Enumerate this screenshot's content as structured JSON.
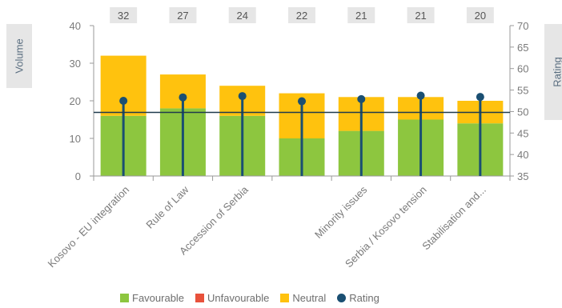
{
  "chart_data": {
    "type": "bar",
    "stacked": true,
    "categories": [
      "Kosovo - EU integration",
      "Rule of Law",
      "Accession of Serbia",
      "",
      "Minority issues",
      "Serbia / Kosovo tension",
      "Stabilisation and..."
    ],
    "series": [
      {
        "name": "Favourable",
        "values": [
          16,
          18,
          16,
          10,
          12,
          15,
          14
        ],
        "color": "#8dc63f"
      },
      {
        "name": "Unfavourable",
        "values": [
          0,
          0,
          0,
          0,
          0,
          0,
          0
        ],
        "color": "#e8513b"
      },
      {
        "name": "Neutral",
        "values": [
          16,
          9,
          8,
          12,
          9,
          6,
          6
        ],
        "color": "#ffc20e"
      }
    ],
    "totals": [
      "32",
      "27",
      "24",
      "22",
      "21",
      "21",
      "20"
    ],
    "rating": {
      "name": "Rating",
      "values": [
        52.5,
        53.3,
        53.6,
        52.4,
        52.9,
        53.7,
        53.4
      ],
      "color": "#1a4f72"
    },
    "reference_line": 49.8,
    "ylabel": "Volume",
    "y2label": "Rating",
    "ylim": [
      0,
      40
    ],
    "y2lim": [
      35,
      70
    ],
    "yticks": [
      "0",
      "10",
      "20",
      "30",
      "40"
    ],
    "y2ticks": [
      "35",
      "40",
      "45",
      "50",
      "55",
      "60",
      "65",
      "70"
    ],
    "grid": false,
    "legend_position": "bottom"
  }
}
